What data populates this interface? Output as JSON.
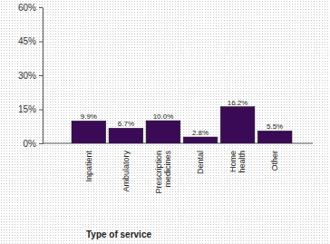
{
  "chart_data": {
    "type": "bar",
    "x_label": "Type of service",
    "categories": [
      "Inpatient",
      "Ambulatory",
      "Prescription medicines",
      "Dental",
      "Home health",
      "Other"
    ],
    "values": [
      9.9,
      6.7,
      10.0,
      2.8,
      16.2,
      5.5
    ],
    "value_labels": [
      "9.9%",
      "6.7%",
      "10.0%",
      "2.8%",
      "16.2%",
      "5.5%"
    ],
    "data_labels": true,
    "color": "#3b0a57",
    "ylim": [
      0,
      60
    ],
    "yticks": [
      {
        "value": 0,
        "label": "0%"
      },
      {
        "value": 15,
        "label": "15%"
      },
      {
        "value": 30,
        "label": "30%"
      },
      {
        "value": 45,
        "label": "45%"
      },
      {
        "value": 60,
        "label": "60%"
      }
    ],
    "grid": false
  }
}
